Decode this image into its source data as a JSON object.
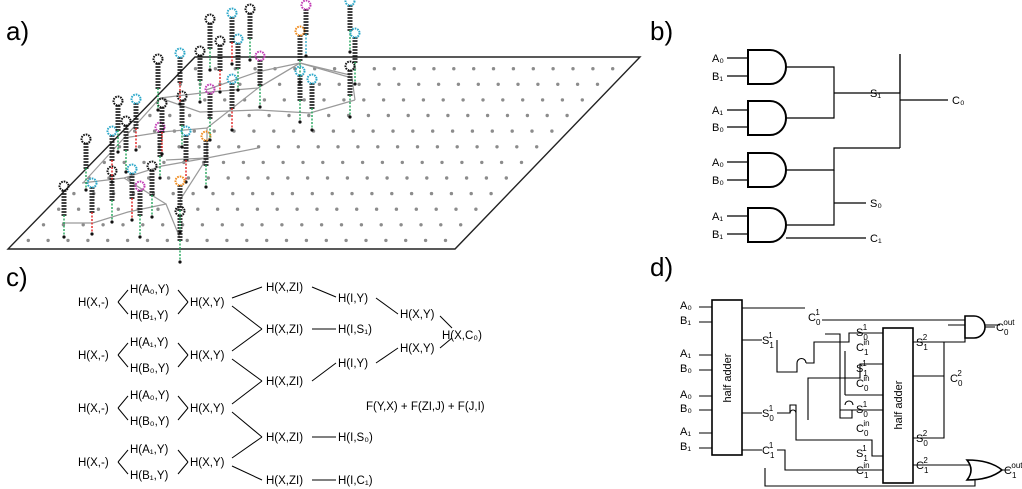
{
  "panels": {
    "a": "a)",
    "b": "b)",
    "c": "c)",
    "d": "d)"
  },
  "colors": {
    "stem": "#111111",
    "dot": "#8c8c8c",
    "lane": "#9a9a9a",
    "cyan": "#2aa7c9",
    "magenta": "#c23ab5",
    "orange": "#f08a1c",
    "red": "#e02020",
    "green": "#22a65a"
  },
  "panel_b": {
    "inputs": [
      "A₀",
      "B₁",
      "A₁",
      "B₀",
      "A₀",
      "B₀",
      "A₁",
      "B₁"
    ],
    "mid_outputs": [
      "S₁",
      "S₀"
    ],
    "outputs": [
      "C₀",
      "C₁"
    ]
  },
  "panel_c": {
    "rows": [
      {
        "start": "H(X,-)",
        "pair_top": "H(A₀,Y)",
        "pair_bot": "H(B₁,Y)",
        "merge": "H(X,Y)"
      },
      {
        "start": "H(X,-)",
        "pair_top": "H(A₁,Y)",
        "pair_bot": "H(B₀,Y)",
        "merge": "H(X,Y)"
      },
      {
        "start": "H(X,-)",
        "pair_top": "H(A₀,Y)",
        "pair_bot": "H(B₀,Y)",
        "merge": "H(X,Y)"
      },
      {
        "start": "H(X,-)",
        "pair_top": "H(A₁,Y)",
        "pair_bot": "H(B₁,Y)",
        "merge": "H(X,Y)"
      }
    ],
    "zi_nodes": [
      "H(X,ZI)",
      "H(X,ZI)",
      "H(X,ZI)",
      "H(X,ZI)",
      "H(X,ZI)"
    ],
    "i_nodes": [
      "H(I,Y)",
      "H(I,S₁)",
      "H(I,Y)",
      "H(I,S₀)",
      "H(I,C₁)"
    ],
    "xy_nodes": [
      "H(X,Y)",
      "H(X,Y)"
    ],
    "final": "H(X,C₀)",
    "formula": "F(Y,X) + F(ZI,J) + F(J,I)"
  },
  "panel_d": {
    "block_label": "half adder",
    "inputs": [
      "A₀",
      "B₁",
      "A₁",
      "B₀",
      "A₀",
      "B₀",
      "A₁",
      "B₁"
    ],
    "ha1_outputs": [
      {
        "base": "C",
        "sub": "0",
        "sup": "1"
      },
      {
        "base": "S",
        "sub": "1",
        "sup": "1"
      },
      {
        "base": "S",
        "sub": "0",
        "sup": "1"
      },
      {
        "base": "C",
        "sub": "1",
        "sup": "1"
      }
    ],
    "ha2_inputs": [
      {
        "base": "S",
        "sub": "0",
        "sup": "1"
      },
      {
        "base": "C",
        "sub": "1",
        "sup": "in"
      },
      {
        "base": "S",
        "sub": "1",
        "sup": "1"
      },
      {
        "base": "C",
        "sub": "0",
        "sup": "in"
      },
      {
        "base": "S",
        "sub": "0",
        "sup": "1"
      },
      {
        "base": "C",
        "sub": "0",
        "sup": "in"
      },
      {
        "base": "S",
        "sub": "1",
        "sup": "1"
      },
      {
        "base": "C",
        "sub": "1",
        "sup": "in"
      }
    ],
    "ha2_outputs": [
      {
        "base": "S",
        "sub": "1",
        "sup": "2"
      },
      {
        "base": "C",
        "sub": "0",
        "sup": "2"
      },
      {
        "base": "S",
        "sub": "0",
        "sup": "2"
      },
      {
        "base": "C",
        "sub": "1",
        "sup": "2"
      }
    ],
    "final_outputs": [
      {
        "base": "C",
        "sub": "0",
        "sup": "out"
      },
      {
        "base": "C",
        "sub": "1",
        "sup": "out"
      }
    ]
  }
}
